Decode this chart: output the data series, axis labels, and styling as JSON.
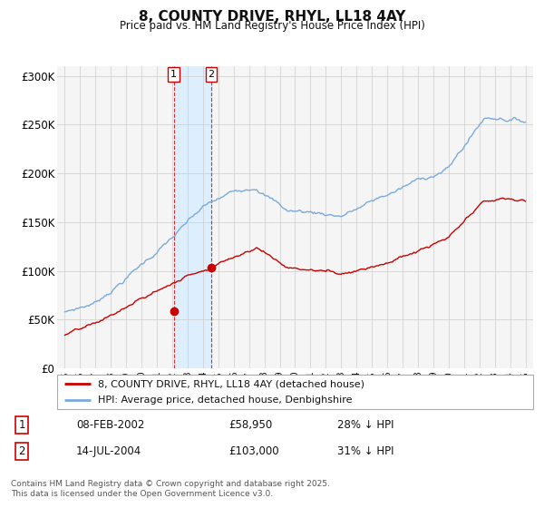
{
  "title": "8, COUNTY DRIVE, RHYL, LL18 4AY",
  "subtitle": "Price paid vs. HM Land Registry's House Price Index (HPI)",
  "bg_color": "#ffffff",
  "plot_bg_color": "#f5f5f5",
  "grid_color": "#cccccc",
  "red_color": "#cc0000",
  "blue_color": "#7aaadd",
  "highlight_color": "#ddeeff",
  "sale1_date_num": 2002.1,
  "sale2_date_num": 2004.54,
  "sale1_label": "1",
  "sale2_label": "2",
  "sale1_price": 58950,
  "sale2_price": 103000,
  "legend_entry1": "8, COUNTY DRIVE, RHYL, LL18 4AY (detached house)",
  "legend_entry2": "HPI: Average price, detached house, Denbighshire",
  "table_row1": [
    "1",
    "08-FEB-2002",
    "£58,950",
    "28% ↓ HPI"
  ],
  "table_row2": [
    "2",
    "14-JUL-2004",
    "£103,000",
    "31% ↓ HPI"
  ],
  "footer": "Contains HM Land Registry data © Crown copyright and database right 2025.\nThis data is licensed under the Open Government Licence v3.0.",
  "xlim": [
    1994.5,
    2025.5
  ],
  "ylim": [
    0,
    310000
  ],
  "yticks": [
    0,
    50000,
    100000,
    150000,
    200000,
    250000,
    300000
  ],
  "ytick_labels": [
    "£0",
    "£50K",
    "£100K",
    "£150K",
    "£200K",
    "£250K",
    "£300K"
  ],
  "xticks": [
    1995,
    1996,
    1997,
    1998,
    1999,
    2000,
    2001,
    2002,
    2003,
    2004,
    2005,
    2006,
    2007,
    2008,
    2009,
    2010,
    2011,
    2012,
    2013,
    2014,
    2015,
    2016,
    2017,
    2018,
    2019,
    2020,
    2021,
    2022,
    2023,
    2024,
    2025
  ]
}
